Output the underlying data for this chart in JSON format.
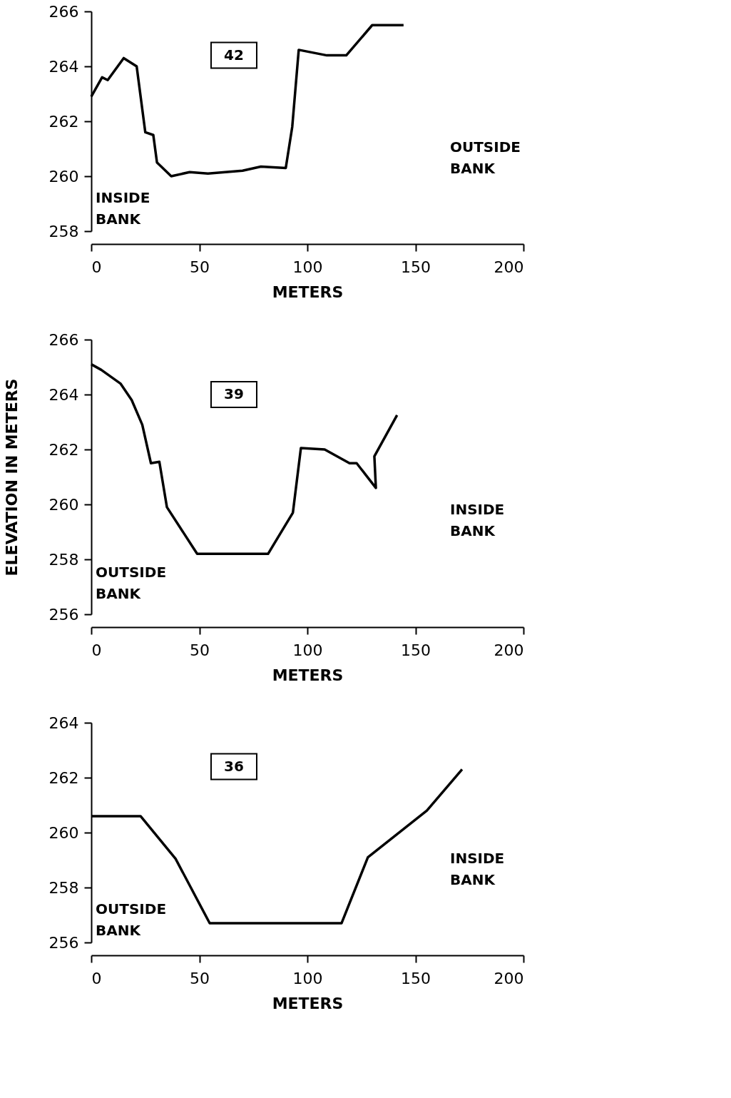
{
  "chart_data": [
    {
      "type": "line",
      "xlabel": "METERS",
      "xlim": [
        0,
        200
      ],
      "xticks": [
        0,
        50,
        100,
        150,
        200
      ],
      "ylim": [
        258,
        266
      ],
      "yticks": [
        258,
        260,
        262,
        264,
        266
      ],
      "grid": false,
      "marker": "none",
      "annotations": [
        "42",
        "INSIDE BANK",
        "OUTSIDE BANK"
      ],
      "series": [
        {
          "color": "#000000",
          "x": [
            0,
            5,
            7.6,
            15,
            21,
            25,
            28.7,
            30.4,
            37,
            45.5,
            54,
            70,
            78.5,
            90,
            93,
            96,
            109,
            118,
            130,
            144.5
          ],
          "values": [
            262.9,
            263.6,
            263.5,
            264.3,
            264.0,
            261.6,
            261.5,
            260.5,
            260.0,
            260.15,
            260.1,
            260.2,
            260.35,
            260.3,
            261.8,
            264.6,
            264.4,
            264.4,
            265.5,
            265.5
          ]
        }
      ]
    },
    {
      "type": "line",
      "xlabel": "METERS",
      "ylabel": "ELEVATION IN METERS",
      "xlim": [
        0,
        200
      ],
      "xticks": [
        0,
        50,
        100,
        150,
        200
      ],
      "ylim": [
        256,
        266
      ],
      "yticks": [
        256,
        258,
        260,
        262,
        264,
        266
      ],
      "grid": false,
      "marker": "none",
      "annotations": [
        "39",
        "OUTSIDE BANK",
        "INSIDE BANK"
      ],
      "series": [
        {
          "color": "#000000",
          "x": [
            0,
            4.6,
            13.5,
            18.7,
            23.6,
            27.6,
            31.5,
            35,
            49,
            81.8,
            93.3,
            97,
            108,
            119.5,
            122.8,
            131.7,
            131,
            141.5
          ],
          "values": [
            265.1,
            264.9,
            264.4,
            263.8,
            262.9,
            261.5,
            261.55,
            259.9,
            258.2,
            258.2,
            259.7,
            262.05,
            262.0,
            261.5,
            261.5,
            260.6,
            261.75,
            263.25
          ]
        }
      ]
    },
    {
      "type": "line",
      "xlabel": "METERS",
      "xlim": [
        0,
        200
      ],
      "xticks": [
        0,
        50,
        100,
        150,
        200
      ],
      "ylim": [
        256,
        264
      ],
      "yticks": [
        256,
        258,
        260,
        262,
        264
      ],
      "grid": false,
      "marker": "none",
      "annotations": [
        "36",
        "OUTSIDE BANK",
        "INSIDE BANK"
      ],
      "series": [
        {
          "color": "#000000",
          "x": [
            0,
            22.8,
            39,
            54.8,
            115.8,
            128,
            155.3,
            171.6
          ],
          "values": [
            260.6,
            260.6,
            259.05,
            256.7,
            256.7,
            259.1,
            260.8,
            262.3
          ]
        }
      ]
    }
  ]
}
